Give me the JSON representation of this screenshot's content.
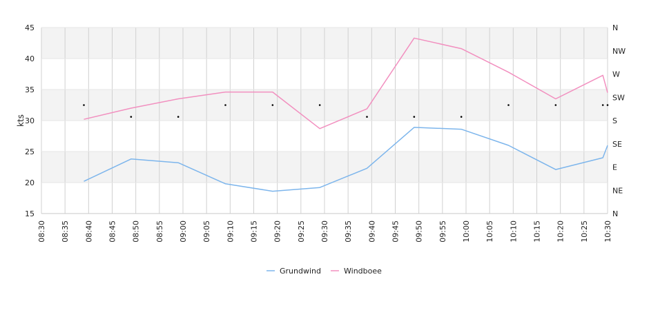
{
  "chart_data": {
    "type": "line",
    "ylabel": "kts",
    "ylim": [
      15,
      45
    ],
    "y_ticks": [
      "15",
      "20",
      "25",
      "30",
      "35",
      "40",
      "45"
    ],
    "x_ticks": [
      "08:30",
      "08:35",
      "08:40",
      "08:45",
      "08:50",
      "08:55",
      "09:00",
      "09:05",
      "09:10",
      "09:15",
      "09:20",
      "09:25",
      "09:30",
      "09:35",
      "09:40",
      "09:45",
      "09:50",
      "09:55",
      "10:00",
      "10:05",
      "10:10",
      "10:15",
      "10:20",
      "10:25",
      "10:30"
    ],
    "right_axis_ticks": [
      "N",
      "NE",
      "E",
      "SE",
      "S",
      "SW",
      "W",
      "NW",
      "N"
    ],
    "grid": true,
    "legend_position": "bottom",
    "series": [
      {
        "name": "Grundwind",
        "color": "#7cb5ec",
        "x": [
          "08:39",
          "08:49",
          "08:59",
          "09:09",
          "09:19",
          "09:29",
          "09:39",
          "09:49",
          "09:59",
          "10:09",
          "10:19",
          "10:29",
          "10:30"
        ],
        "values": [
          20.2,
          23.8,
          23.2,
          19.8,
          18.6,
          19.2,
          22.3,
          28.9,
          28.6,
          26.0,
          22.1,
          24.0,
          26.0
        ]
      },
      {
        "name": "Windboee",
        "color": "#f28fbf",
        "x": [
          "08:39",
          "08:49",
          "08:59",
          "09:09",
          "09:19",
          "09:29",
          "09:39",
          "09:49",
          "09:59",
          "10:09",
          "10:19",
          "10:29",
          "10:30"
        ],
        "values": [
          30.2,
          32.0,
          33.5,
          34.6,
          34.6,
          28.7,
          31.9,
          43.3,
          41.6,
          37.8,
          33.5,
          37.3,
          34.5
        ]
      }
    ],
    "direction_markers": {
      "x": [
        "08:39",
        "08:49",
        "08:59",
        "09:09",
        "09:19",
        "09:29",
        "09:39",
        "09:49",
        "09:59",
        "10:09",
        "10:19",
        "10:29",
        "10:30"
      ],
      "values": [
        32.5,
        30.6,
        30.6,
        32.5,
        32.5,
        32.5,
        30.6,
        30.6,
        30.6,
        32.5,
        32.5,
        32.5,
        32.5
      ]
    }
  }
}
